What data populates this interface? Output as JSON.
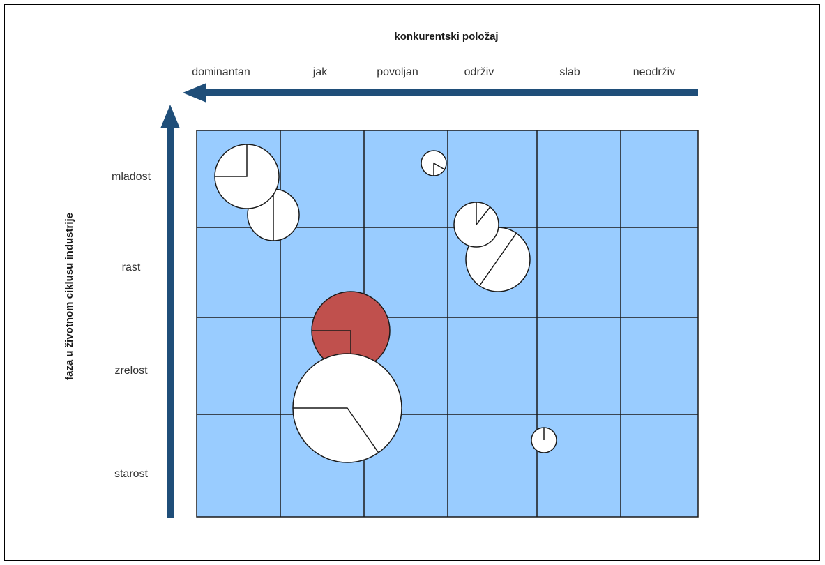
{
  "diagram": {
    "x_axis_title": "konkurentski položaj",
    "y_axis_title": "faza u životnom ciklusu industrije",
    "x_categories": [
      "dominantan",
      "jak",
      "povoljan",
      "održiv",
      "slab",
      "neodrživ"
    ],
    "y_categories": [
      "mladost",
      "rast",
      "zrelost",
      "starost"
    ],
    "colors": {
      "grid_fill": "#99CCFF",
      "grid_line": "#1a1a1a",
      "arrow": "#1F4E79",
      "bubble_default": "#FFFFFF",
      "bubble_highlight": "#C0504D"
    },
    "bubbles": [
      {
        "id": "mladost-dominantan-large",
        "x_category": "dominantan",
        "y_category": "mladost",
        "relative_size": 0.6,
        "share": 0.25,
        "highlight": false
      },
      {
        "id": "mladost-dominantan-small",
        "x_category": "dominantan",
        "y_category": "mladost",
        "relative_size": 0.48,
        "share": 0.5,
        "highlight": false
      },
      {
        "id": "mladost-povoljan",
        "x_category": "povoljan",
        "y_category": "mladost",
        "relative_size": 0.24,
        "share": 0.17,
        "highlight": false
      },
      {
        "id": "rast-odrziv-small",
        "x_category": "održiv",
        "y_category": "rast",
        "relative_size": 0.42,
        "share": 0.1,
        "highlight": false
      },
      {
        "id": "rast-odrziv-large",
        "x_category": "održiv",
        "y_category": "rast",
        "relative_size": 0.6,
        "share": 0.09,
        "highlight": false
      },
      {
        "id": "zrelost-jak-highlight",
        "x_category": "jak",
        "y_category": "zrelost",
        "relative_size": 0.73,
        "share": 0.27,
        "highlight": true
      },
      {
        "id": "zrelost-jak-large",
        "x_category": "jak",
        "y_category": "zrelost",
        "relative_size": 1.0,
        "share": 0.35,
        "highlight": false
      },
      {
        "id": "starost-slab",
        "x_category": "slab",
        "y_category": "starost",
        "relative_size": 0.24,
        "share": 0.0,
        "highlight": false
      }
    ]
  }
}
